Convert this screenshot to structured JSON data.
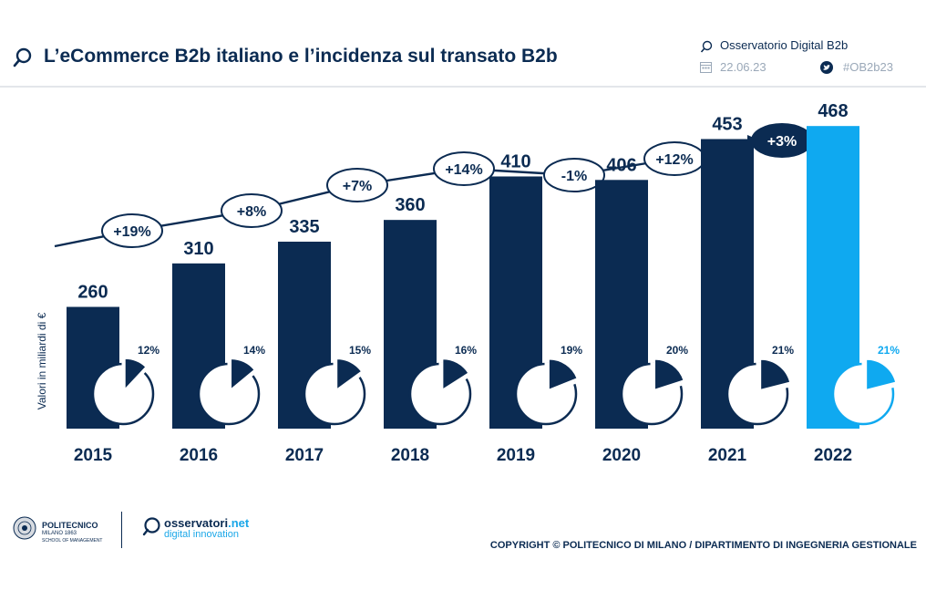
{
  "header": {
    "title": "L’eCommerce B2b italiano e l’incidenza sul transato B2b",
    "source": "Osservatorio Digital B2b",
    "date": "22.06.23",
    "hashtag": "#OB2b23",
    "icons": [
      "observatory-icon",
      "calendar-icon",
      "twitter-icon"
    ]
  },
  "chart_data": {
    "type": "bar",
    "categories": [
      "2015",
      "2016",
      "2017",
      "2018",
      "2019",
      "2020",
      "2021",
      "2022"
    ],
    "values": [
      260,
      310,
      335,
      360,
      410,
      406,
      453,
      468
    ],
    "value_labels": [
      "260",
      "310",
      "335",
      "360",
      "410",
      "406",
      "453",
      "468"
    ],
    "ylabel": "Valori in miliardi di €",
    "growth": [
      "+19%",
      "+8%",
      "+7%",
      "+14%",
      "-1%",
      "+12%",
      "+3%"
    ],
    "incidence": {
      "values": [
        12,
        14,
        15,
        16,
        19,
        20,
        21,
        21
      ],
      "labels": [
        "12%",
        "14%",
        "15%",
        "16%",
        "19%",
        "20%",
        "21%",
        "21%"
      ]
    },
    "ylim": [
      0,
      500
    ],
    "colors": {
      "bar": "#0b2b52",
      "highlight": "#0fa9f0",
      "text": "#0b2b52"
    },
    "highlight_category": "2022"
  },
  "footer": {
    "polimi_name": "POLITECNICO",
    "polimi_sub": "MILANO 1863",
    "polimi_school": "SCHOOL OF MANAGEMENT",
    "osservatori_brand": "osservatori",
    "osservatori_brand_suffix": ".net",
    "osservatori_sub": "digital innovation",
    "copyright": "COPYRIGHT © POLITECNICO DI MILANO / DIPARTIMENTO DI INGEGNERIA GESTIONALE"
  }
}
